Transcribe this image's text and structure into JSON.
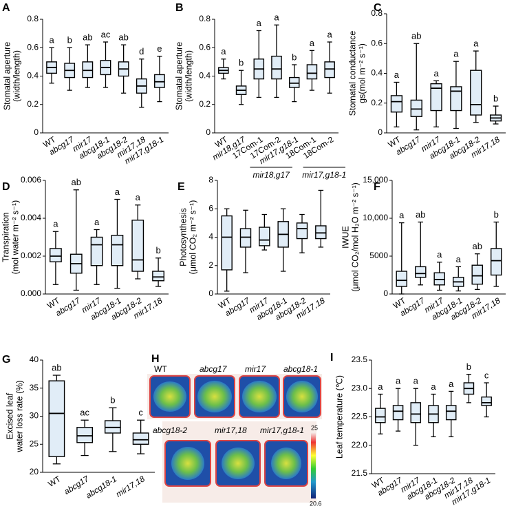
{
  "chart_data": [
    {
      "type": "box",
      "panel": "A",
      "ylabel": [
        "Stomatal aperture",
        "(width/length)"
      ],
      "categories": [
        "WT",
        "abcg17",
        "mir17",
        "abcg18-1",
        "abcg18-2",
        "mir17,18",
        "mir17,g18-1"
      ],
      "boxes": [
        [
          0.35,
          0.42,
          0.46,
          0.5,
          0.6
        ],
        [
          0.3,
          0.39,
          0.44,
          0.49,
          0.6
        ],
        [
          0.32,
          0.39,
          0.44,
          0.5,
          0.62
        ],
        [
          0.32,
          0.41,
          0.46,
          0.51,
          0.64
        ],
        [
          0.28,
          0.4,
          0.45,
          0.5,
          0.62
        ],
        [
          0.18,
          0.28,
          0.33,
          0.38,
          0.52
        ],
        [
          0.22,
          0.32,
          0.36,
          0.41,
          0.54
        ]
      ],
      "letters": [
        "a",
        "b",
        "ab",
        "ac",
        "ab",
        "d",
        "e"
      ],
      "ylim": [
        0,
        0.8
      ],
      "yticks": [
        0,
        0.2,
        0.4,
        0.6,
        0.8
      ]
    },
    {
      "type": "box",
      "panel": "B",
      "ylabel": [
        "Stomatal aperture",
        "(width/length)"
      ],
      "categories": [
        "WT",
        "mir18,g17",
        "17Com-1",
        "17Com-2",
        "mir17,g18-1",
        "18Com-1",
        "18Com-2"
      ],
      "group_labels": [
        "mir18,g17",
        "mir17,g18-1"
      ],
      "boxes": [
        [
          0.38,
          0.42,
          0.44,
          0.46,
          0.52
        ],
        [
          0.2,
          0.27,
          0.3,
          0.33,
          0.44
        ],
        [
          0.25,
          0.38,
          0.45,
          0.52,
          0.72
        ],
        [
          0.25,
          0.38,
          0.45,
          0.54,
          0.76
        ],
        [
          0.22,
          0.32,
          0.35,
          0.39,
          0.48
        ],
        [
          0.3,
          0.38,
          0.42,
          0.48,
          0.58
        ],
        [
          0.28,
          0.39,
          0.45,
          0.5,
          0.64
        ]
      ],
      "letters": [
        "a",
        "b",
        "a",
        "a",
        "b",
        "a",
        "a"
      ],
      "ylim": [
        0,
        0.8
      ],
      "yticks": [
        0,
        0.2,
        0.4,
        0.6,
        0.8
      ]
    },
    {
      "type": "box",
      "panel": "C",
      "ylabel": [
        "Stomatal conductance",
        "gs(mol m⁻² s⁻¹)"
      ],
      "categories": [
        "WT",
        "abcg17",
        "mir17",
        "abcg18-1",
        "abcg18-2",
        "mir17,18"
      ],
      "boxes": [
        [
          0.04,
          0.14,
          0.21,
          0.25,
          0.34
        ],
        [
          0.02,
          0.11,
          0.16,
          0.22,
          0.6
        ],
        [
          0.04,
          0.15,
          0.3,
          0.33,
          0.35
        ],
        [
          0.03,
          0.15,
          0.28,
          0.31,
          0.48
        ],
        [
          0.07,
          0.12,
          0.19,
          0.42,
          0.55
        ],
        [
          0.06,
          0.08,
          0.1,
          0.12,
          0.18
        ]
      ],
      "letters": [
        "a",
        "ab",
        "a",
        "a",
        "a",
        "b"
      ],
      "ylim": [
        0,
        0.8
      ],
      "yticks": [
        0,
        0.2,
        0.4,
        0.6,
        0.8
      ]
    },
    {
      "type": "box",
      "panel": "D",
      "ylabel": [
        "Transpiration",
        "(mol water m⁻² s⁻¹)"
      ],
      "categories": [
        "WT",
        "abcg17",
        "mir17",
        "abcg18-1",
        "abcg18-2",
        "mir17,18"
      ],
      "boxes": [
        [
          0.0005,
          0.0017,
          0.002,
          0.0024,
          0.0033
        ],
        [
          0.0002,
          0.0011,
          0.0016,
          0.0021,
          0.0055
        ],
        [
          0.0005,
          0.0015,
          0.0026,
          0.003,
          0.0034
        ],
        [
          0.0003,
          0.0015,
          0.0026,
          0.0031,
          0.005
        ],
        [
          0.0008,
          0.0012,
          0.0018,
          0.0039,
          0.0047
        ],
        [
          0.0004,
          0.0007,
          0.0009,
          0.0012,
          0.0019
        ]
      ],
      "letters": [
        "a",
        "ab",
        "a",
        "a",
        "a",
        "b"
      ],
      "ylim": [
        0,
        0.006
      ],
      "yticks": [
        {
          "value": 0,
          "label": "0.000"
        },
        {
          "value": 0.002,
          "label": "0.002"
        },
        {
          "value": 0.004,
          "label": "0.004"
        },
        {
          "value": 0.006,
          "label": "0.006"
        }
      ]
    },
    {
      "type": "box",
      "panel": "E",
      "ylabel": [
        "Photosynthesis",
        "(μmol CO₂ m⁻² s⁻¹)"
      ],
      "categories": [
        "WT",
        "abcg17",
        "mir17",
        "abcg18-1",
        "abcg18-2",
        "mir17,18"
      ],
      "boxes": [
        [
          0.2,
          1.7,
          4.0,
          5.5,
          6.0
        ],
        [
          1.5,
          3.3,
          4.0,
          4.6,
          5.9
        ],
        [
          3.1,
          3.4,
          3.8,
          4.7,
          5.6
        ],
        [
          1.6,
          3.3,
          4.2,
          5.1,
          6.0
        ],
        [
          2.9,
          3.9,
          4.6,
          5.0,
          5.6
        ],
        [
          3.3,
          3.9,
          4.3,
          4.8,
          7.3
        ]
      ],
      "ylim": [
        0,
        8
      ],
      "yticks": [
        0,
        2,
        4,
        6,
        8
      ]
    },
    {
      "type": "box",
      "panel": "F",
      "ylabel": [
        "IWUE",
        "(μmol CO₂/mol H₂O m⁻² s⁻¹)"
      ],
      "categories": [
        "WT",
        "abcg17",
        "mir17",
        "abcg18-1",
        "abcg18-2",
        "mir17,18"
      ],
      "boxes": [
        [
          0,
          1000,
          1800,
          3000,
          9400
        ],
        [
          1200,
          2200,
          2700,
          3600,
          9500
        ],
        [
          500,
          1200,
          1900,
          2800,
          4200
        ],
        [
          400,
          1000,
          1600,
          2200,
          3600
        ],
        [
          600,
          1300,
          2400,
          3800,
          5300
        ],
        [
          1000,
          2500,
          4400,
          6000,
          9500
        ]
      ],
      "letters": [
        "a",
        "ab",
        "a",
        "a",
        "ab",
        "b"
      ],
      "ylim": [
        0,
        15000
      ],
      "yticks": [
        0,
        5000,
        {
          "value": 10000,
          "label": "10,000"
        },
        {
          "value": 15000,
          "label": "15,000"
        }
      ]
    },
    {
      "type": "box",
      "panel": "G",
      "ylabel": [
        "Excised leaf",
        "water loss rate (%)"
      ],
      "categories": [
        "WT",
        "abcg17",
        "abcg18-1",
        "mir17,18"
      ],
      "boxes": [
        [
          21.5,
          22.8,
          30.5,
          36.3,
          37.3
        ],
        [
          23.0,
          25.3,
          26.5,
          28.0,
          29.3
        ],
        [
          23.7,
          27.0,
          28.0,
          29.2,
          31.5
        ],
        [
          23.3,
          25.0,
          25.8,
          27.0,
          29.3
        ]
      ],
      "letters": [
        "ab",
        "ac",
        "b",
        "c"
      ],
      "ylim": [
        20,
        40
      ],
      "yticks": [
        20,
        25,
        30,
        35,
        40
      ]
    },
    {
      "type": "box",
      "panel": "I",
      "ylabel": [
        "Leaf temperature (℃)"
      ],
      "categories": [
        "WT",
        "abcg17",
        "mir17",
        "abcg18-1",
        "abcg18-2",
        "mir17,18",
        "mir17,g18-1"
      ],
      "boxes": [
        [
          22.2,
          22.4,
          22.5,
          22.65,
          22.9
        ],
        [
          22.25,
          22.45,
          22.6,
          22.7,
          23.0
        ],
        [
          22.0,
          22.4,
          22.55,
          22.75,
          23.0
        ],
        [
          22.15,
          22.4,
          22.55,
          22.7,
          22.9
        ],
        [
          22.15,
          22.45,
          22.6,
          22.7,
          22.95
        ],
        [
          22.75,
          22.9,
          23.0,
          23.1,
          23.25
        ],
        [
          22.5,
          22.7,
          22.75,
          22.85,
          23.1
        ]
      ],
      "letters": [
        "a",
        "a",
        "a",
        "a",
        "a",
        "b",
        "c"
      ],
      "ylim": [
        21.5,
        23.5
      ],
      "yticks": [
        21.5,
        {
          "value": 22,
          "label": "22.0"
        },
        22.5,
        {
          "value": 23,
          "label": "23.0"
        },
        23.5
      ]
    }
  ],
  "thermal_panel": {
    "panel": "H",
    "labels": [
      "WT",
      "abcg17",
      "mir17",
      "abcg18-1",
      "abcg18-2",
      "mir17,18",
      "mir17,g18-1"
    ],
    "colorbar_max": "25",
    "colorbar_min": "20.6"
  }
}
